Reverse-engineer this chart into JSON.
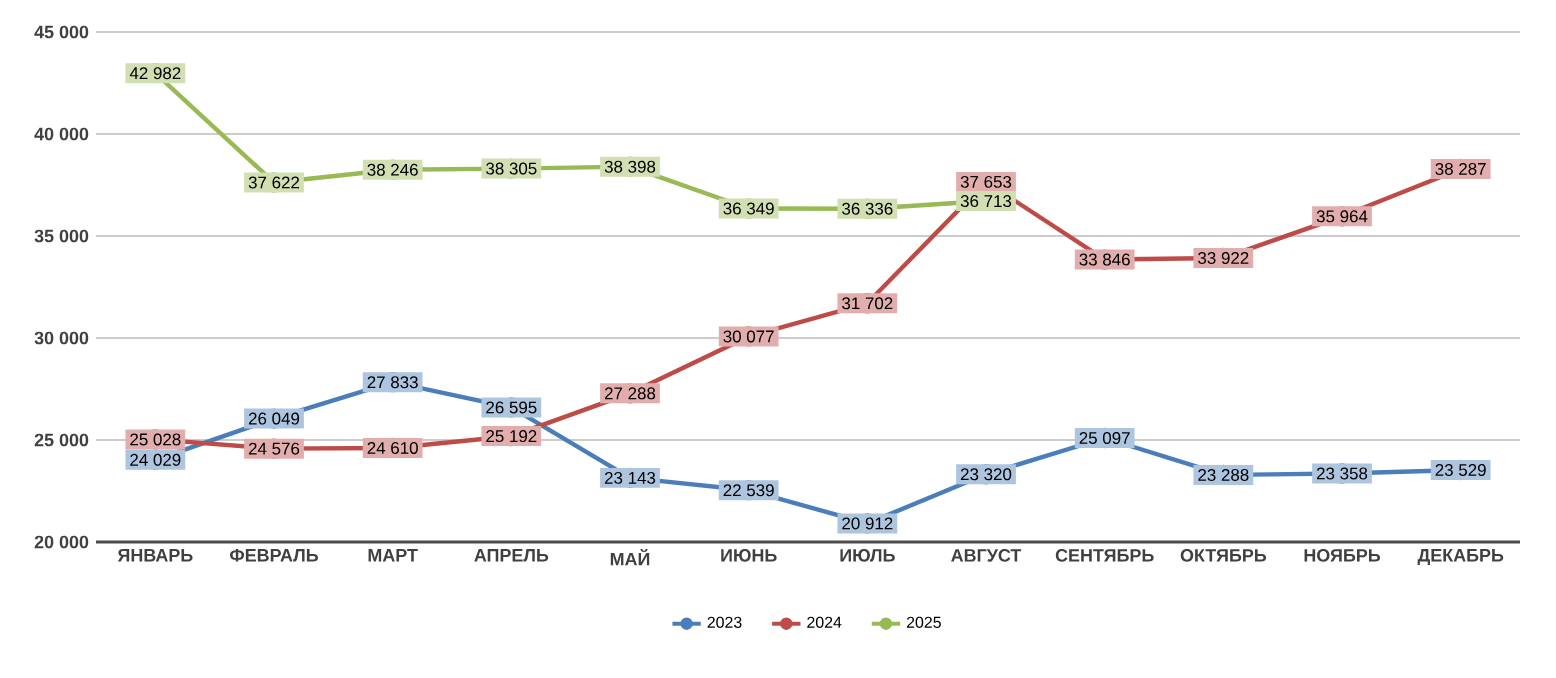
{
  "chart_data": {
    "type": "line",
    "categories": [
      "ЯНВАРЬ",
      "ФЕВРАЛЬ",
      "МАРТ",
      "АПРЕЛЬ",
      "МАЙ",
      "ИЮНЬ",
      "ИЮЛЬ",
      "АВГУСТ",
      "СЕНТЯБРЬ",
      "ОКТЯБРЬ",
      "НОЯБРЬ",
      "ДЕКАБРЬ"
    ],
    "series": [
      {
        "name": "2023",
        "color": "#4a7ebb",
        "values": [
          24029,
          26049,
          27833,
          26595,
          23143,
          22539,
          20912,
          23320,
          25097,
          23288,
          23358,
          23529
        ]
      },
      {
        "name": "2024",
        "color": "#be4b48",
        "values": [
          25028,
          24576,
          24610,
          25192,
          27288,
          30077,
          31702,
          37653,
          33846,
          33922,
          35964,
          38287
        ]
      },
      {
        "name": "2025",
        "color": "#98b954",
        "values": [
          42982,
          37622,
          38246,
          38305,
          38398,
          36349,
          36336,
          36713,
          null,
          null,
          null,
          null
        ]
      }
    ],
    "ylim": [
      20000,
      45000
    ],
    "yticks": [
      {
        "value": 20000,
        "label": "20 000"
      },
      {
        "value": 25000,
        "label": "25 000"
      },
      {
        "value": 30000,
        "label": "30 000"
      },
      {
        "value": 35000,
        "label": "35 000"
      },
      {
        "value": 40000,
        "label": "40 000"
      },
      {
        "value": 45000,
        "label": "45 000"
      }
    ],
    "grid": "y",
    "legend": "bottom",
    "marker": "circle",
    "line_style": "solid",
    "data_labels": true
  }
}
